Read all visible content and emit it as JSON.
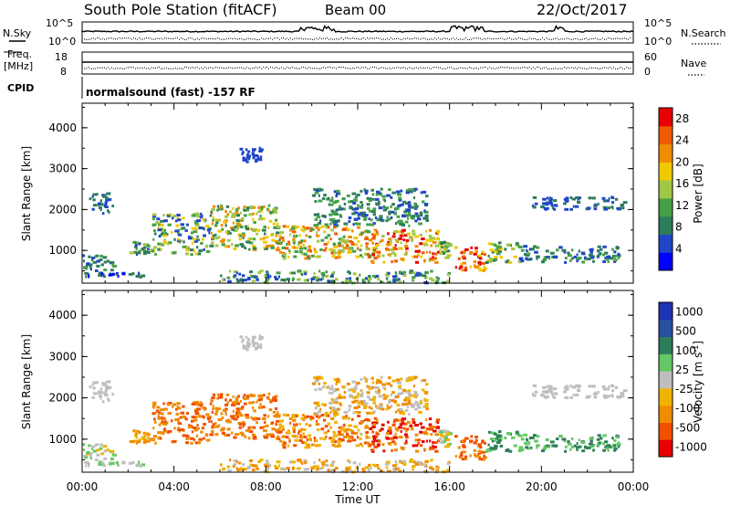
{
  "header": {
    "title": "South Pole Station (fitACF)",
    "beam": "Beam 00",
    "date": "22/Oct/2017"
  },
  "noise_panel": {
    "left_label": "N.Sky",
    "right_label": "N.Search",
    "left_ticks": [
      "10^5",
      "10^0"
    ],
    "right_ticks": [
      "10^5",
      "10^0"
    ]
  },
  "freq_panel": {
    "left_label_1": "Freq.",
    "left_label_2": "[MHz]",
    "left_ticks": [
      "18",
      "8"
    ],
    "right_label": "Nave",
    "right_ticks": [
      "60",
      "0"
    ]
  },
  "cpid_panel": {
    "label": "CPID",
    "text": "normalsound (fast) -157 RF"
  },
  "colors": {
    "power_scale": [
      "#0000ff",
      "#1e46c8",
      "#2e7d5a",
      "#46a046",
      "#a0c846",
      "#f0c800",
      "#f08c00",
      "#f05a00",
      "#e60000"
    ],
    "velocity_scale": [
      "#e60000",
      "#f05000",
      "#f08c00",
      "#f0b400",
      "#bebebe",
      "#64c864",
      "#2e7d5a",
      "#2850a0",
      "#1e32b4"
    ]
  },
  "chart_data": [
    {
      "type": "heatmap",
      "panel": "power",
      "ylabel": "Slant Range [km]",
      "xlabel": "",
      "yticks": [
        "1000",
        "2000",
        "3000",
        "4000"
      ],
      "ylim": [
        200,
        4600
      ],
      "xlim": [
        0,
        24
      ],
      "colorbar": {
        "label": "Power [dB]",
        "ticks": [
          "4",
          "8",
          "12",
          "16",
          "20",
          "24",
          "28"
        ],
        "range": [
          0,
          30
        ]
      }
    },
    {
      "type": "heatmap",
      "panel": "velocity",
      "ylabel": "Slant Range [km]",
      "xlabel": "Time UT",
      "yticks": [
        "1000",
        "2000",
        "3000",
        "4000"
      ],
      "xticks": [
        "00:00",
        "04:00",
        "08:00",
        "12:00",
        "16:00",
        "20:00",
        "00:00"
      ],
      "ylim": [
        200,
        4600
      ],
      "xlim": [
        0,
        24
      ],
      "colorbar": {
        "label": "Velocity [m s",
        "label_exp": "-1",
        "label_end": "]",
        "ticks": [
          "1000",
          "500",
          "100",
          "25",
          "-25",
          "-100",
          "-500",
          "-1000"
        ]
      }
    }
  ]
}
